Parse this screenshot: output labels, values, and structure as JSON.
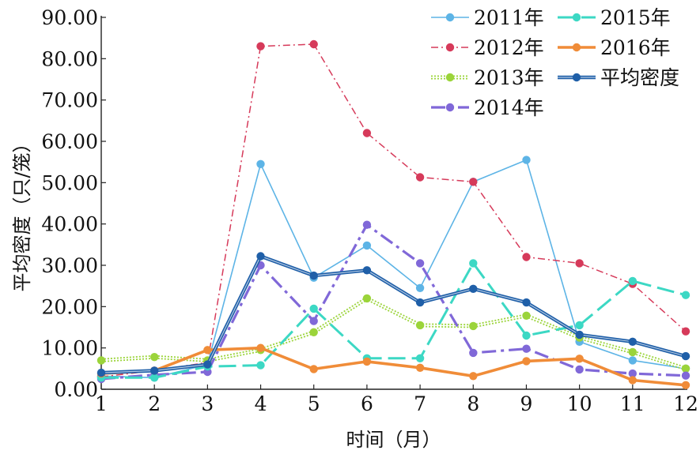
{
  "chart_data": {
    "type": "line",
    "title": "",
    "xlabel": "时间（月）",
    "ylabel": "平均密度（只/笼）",
    "x": [
      1,
      2,
      3,
      4,
      5,
      6,
      7,
      8,
      9,
      10,
      11,
      12
    ],
    "x_tick_labels": [
      "1",
      "2",
      "3",
      "4",
      "5",
      "6",
      "7",
      "8",
      "9",
      "10",
      "11",
      "12"
    ],
    "ylim": [
      0,
      90
    ],
    "y_ticks": [
      0,
      10,
      20,
      30,
      40,
      50,
      60,
      70,
      80,
      90
    ],
    "y_tick_labels": [
      "0.00",
      "10.00",
      "20.00",
      "30.00",
      "40.00",
      "50.00",
      "60.00",
      "70.00",
      "80.00",
      "90.00"
    ],
    "grid": false,
    "legend_position": "top-right",
    "series": [
      {
        "name": "2011年",
        "color": "#5db4e6",
        "style": "solid-thin",
        "values": [
          3.2,
          2.8,
          6.0,
          54.5,
          27.0,
          34.8,
          24.5,
          50.2,
          55.5,
          11.5,
          7.0,
          5.0
        ]
      },
      {
        "name": "2012年",
        "color": "#d63a5a",
        "style": "dash-dot",
        "values": [
          3.0,
          4.5,
          6.5,
          83.0,
          83.5,
          62.0,
          51.3,
          50.2,
          32.0,
          30.5,
          25.5,
          14.0
        ]
      },
      {
        "name": "2013年",
        "color": "#9bd43a",
        "style": "double-dotted",
        "values": [
          7.0,
          7.8,
          7.0,
          9.5,
          13.8,
          22.0,
          15.5,
          15.3,
          17.8,
          12.5,
          9.0,
          5.0
        ]
      },
      {
        "name": "2014年",
        "color": "#8068d8",
        "style": "long-dash-dot",
        "values": [
          2.5,
          3.5,
          4.2,
          30.0,
          16.5,
          39.8,
          30.5,
          8.8,
          9.8,
          4.8,
          3.8,
          3.3
        ]
      },
      {
        "name": "2015年",
        "color": "#3cd8c4",
        "style": "long-dash",
        "values": [
          2.8,
          2.8,
          5.5,
          5.8,
          19.5,
          7.5,
          7.5,
          30.5,
          13.0,
          15.5,
          26.2,
          22.8
        ]
      },
      {
        "name": "2016年",
        "color": "#f08c38",
        "style": "solid-thick",
        "values": [
          3.8,
          4.5,
          9.5,
          10.0,
          4.9,
          6.7,
          5.2,
          3.2,
          6.8,
          7.4,
          2.2,
          1.0
        ]
      },
      {
        "name": "平均密度",
        "color": "#1f5fa8",
        "style": "solid-double",
        "values": [
          4.0,
          4.5,
          6.0,
          32.2,
          27.5,
          28.8,
          21.0,
          24.3,
          21.0,
          13.2,
          11.5,
          8.0
        ]
      }
    ]
  }
}
